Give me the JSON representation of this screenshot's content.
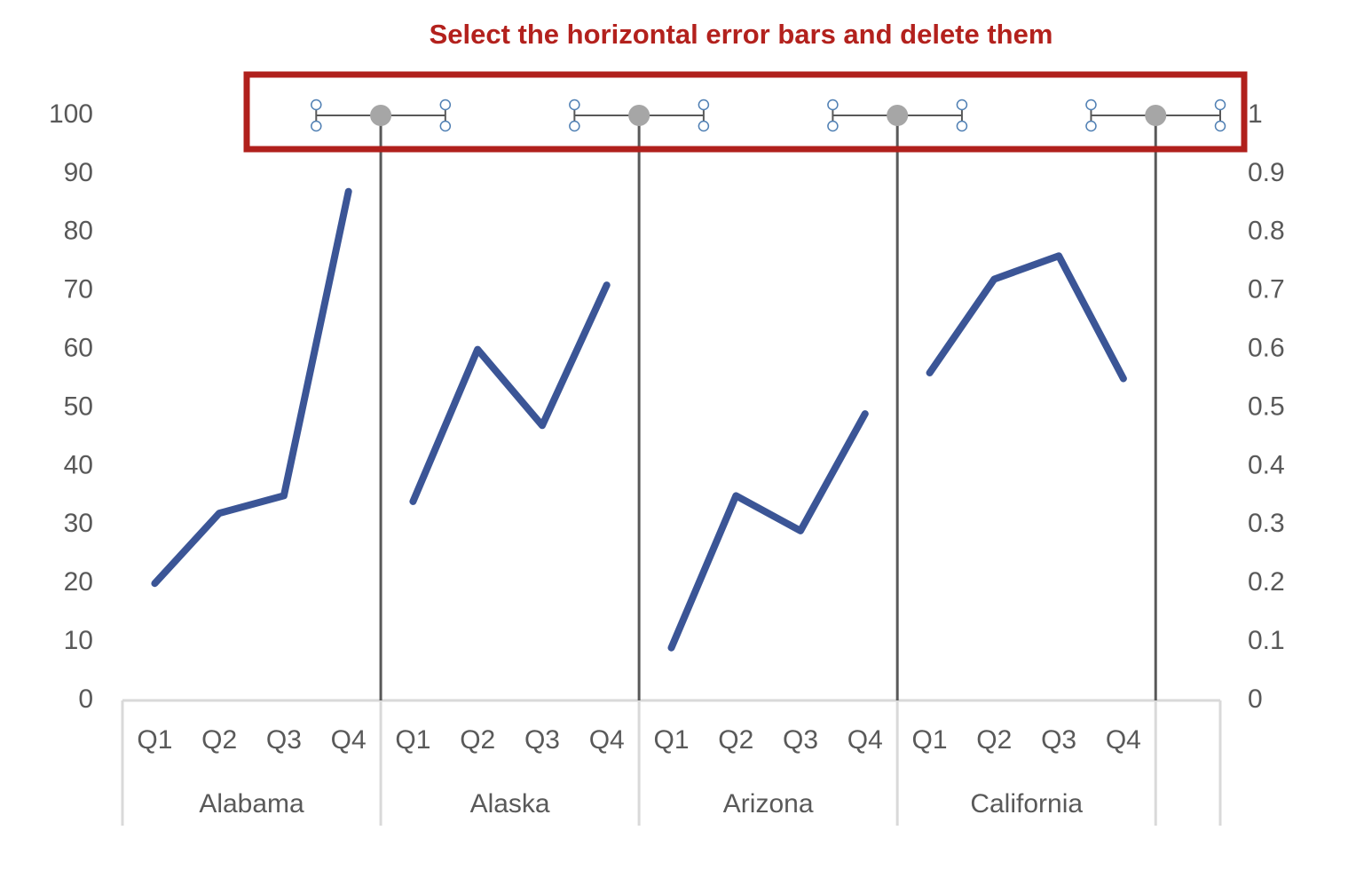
{
  "chart_data": {
    "type": "line",
    "title": "Select the horizontal error bars and delete them",
    "categories": [
      "Q1",
      "Q2",
      "Q3",
      "Q4",
      "Q1",
      "Q2",
      "Q3",
      "Q4",
      "Q1",
      "Q2",
      "Q3",
      "Q4",
      "Q1",
      "Q2",
      "Q3",
      "Q4",
      null
    ],
    "groups": [
      "Alabama",
      "Alaska",
      "Arizona",
      "California",
      null
    ],
    "series": [
      {
        "color": "#3b5596",
        "values": [
          20,
          32,
          35,
          87,
          null,
          null,
          null,
          null,
          null,
          null,
          null,
          null,
          null,
          null,
          null,
          null,
          null
        ]
      },
      {
        "color": "#3b5596",
        "values": [
          null,
          null,
          null,
          null,
          34,
          60,
          47,
          71,
          null,
          null,
          null,
          null,
          null,
          null,
          null,
          null,
          null
        ]
      },
      {
        "color": "#3b5596",
        "values": [
          null,
          null,
          null,
          null,
          null,
          null,
          null,
          null,
          9,
          35,
          29,
          49,
          null,
          null,
          null,
          null,
          null
        ]
      },
      {
        "color": "#3b5596",
        "values": [
          null,
          null,
          null,
          null,
          null,
          null,
          null,
          null,
          null,
          null,
          null,
          null,
          56,
          72,
          76,
          55,
          null
        ]
      }
    ],
    "dividers": {
      "type": "scatter",
      "axis": "y2",
      "color": "#a6a6a6",
      "x": [
        4,
        8,
        12,
        16
      ],
      "values": [
        1,
        1,
        1,
        1
      ],
      "error": 1,
      "xerror": 1
    },
    "ylim": [
      0,
      100
    ],
    "yticks": [
      0,
      10,
      20,
      30,
      40,
      50,
      60,
      70,
      80,
      90,
      100
    ],
    "y2lim": [
      0,
      1
    ],
    "y2ticks": [
      0,
      0.1,
      0.2,
      0.3,
      0.4,
      0.5,
      0.6,
      0.7,
      0.8,
      0.9,
      1
    ]
  }
}
